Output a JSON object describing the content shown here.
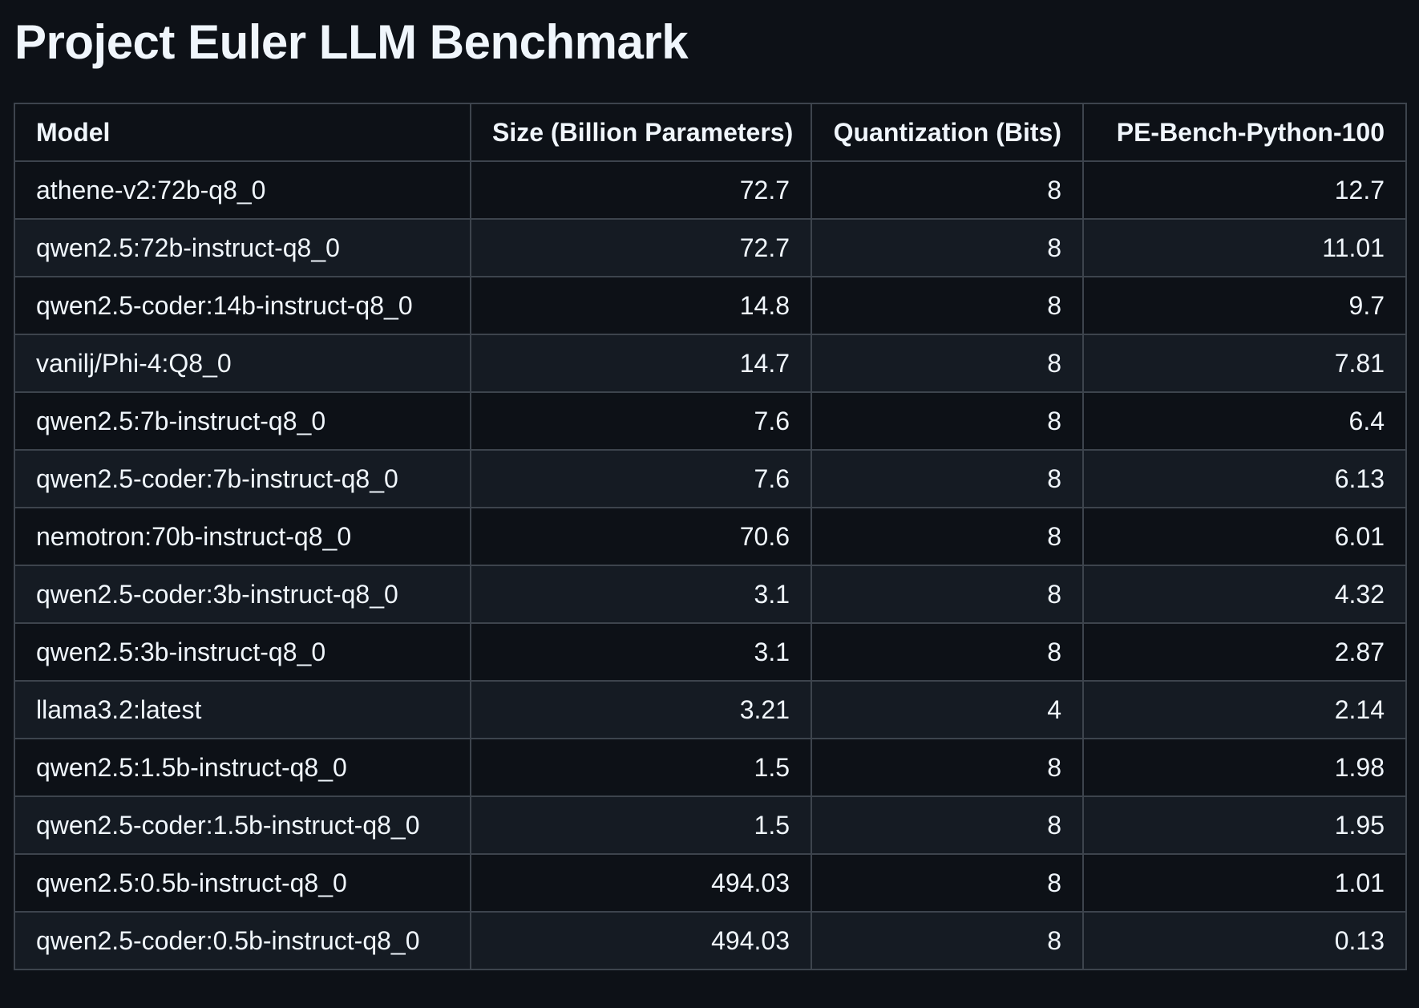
{
  "page": {
    "title": "Project Euler LLM Benchmark"
  },
  "table": {
    "columns": [
      "Model",
      "Size (Billion Parameters)",
      "Quantization (Bits)",
      "PE-Bench-Python-100"
    ],
    "rows": [
      {
        "model": "athene-v2:72b-q8_0",
        "size": "72.7",
        "quantization": "8",
        "score": "12.7"
      },
      {
        "model": "qwen2.5:72b-instruct-q8_0",
        "size": "72.7",
        "quantization": "8",
        "score": "11.01"
      },
      {
        "model": "qwen2.5-coder:14b-instruct-q8_0",
        "size": "14.8",
        "quantization": "8",
        "score": "9.7"
      },
      {
        "model": "vanilj/Phi-4:Q8_0",
        "size": "14.7",
        "quantization": "8",
        "score": "7.81"
      },
      {
        "model": "qwen2.5:7b-instruct-q8_0",
        "size": "7.6",
        "quantization": "8",
        "score": "6.4"
      },
      {
        "model": "qwen2.5-coder:7b-instruct-q8_0",
        "size": "7.6",
        "quantization": "8",
        "score": "6.13"
      },
      {
        "model": "nemotron:70b-instruct-q8_0",
        "size": "70.6",
        "quantization": "8",
        "score": "6.01"
      },
      {
        "model": "qwen2.5-coder:3b-instruct-q8_0",
        "size": "3.1",
        "quantization": "8",
        "score": "4.32"
      },
      {
        "model": "qwen2.5:3b-instruct-q8_0",
        "size": "3.1",
        "quantization": "8",
        "score": "2.87"
      },
      {
        "model": "llama3.2:latest",
        "size": "3.21",
        "quantization": "4",
        "score": "2.14"
      },
      {
        "model": "qwen2.5:1.5b-instruct-q8_0",
        "size": "1.5",
        "quantization": "8",
        "score": "1.98"
      },
      {
        "model": "qwen2.5-coder:1.5b-instruct-q8_0",
        "size": "1.5",
        "quantization": "8",
        "score": "1.95"
      },
      {
        "model": "qwen2.5:0.5b-instruct-q8_0",
        "size": "494.03",
        "quantization": "8",
        "score": "1.01"
      },
      {
        "model": "qwen2.5-coder:0.5b-instruct-q8_0",
        "size": "494.03",
        "quantization": "8",
        "score": "0.13"
      }
    ]
  },
  "colors": {
    "background": "#0d1117",
    "row_alt": "#151b23",
    "border": "#3d444d",
    "text": "#f0f6fc"
  }
}
